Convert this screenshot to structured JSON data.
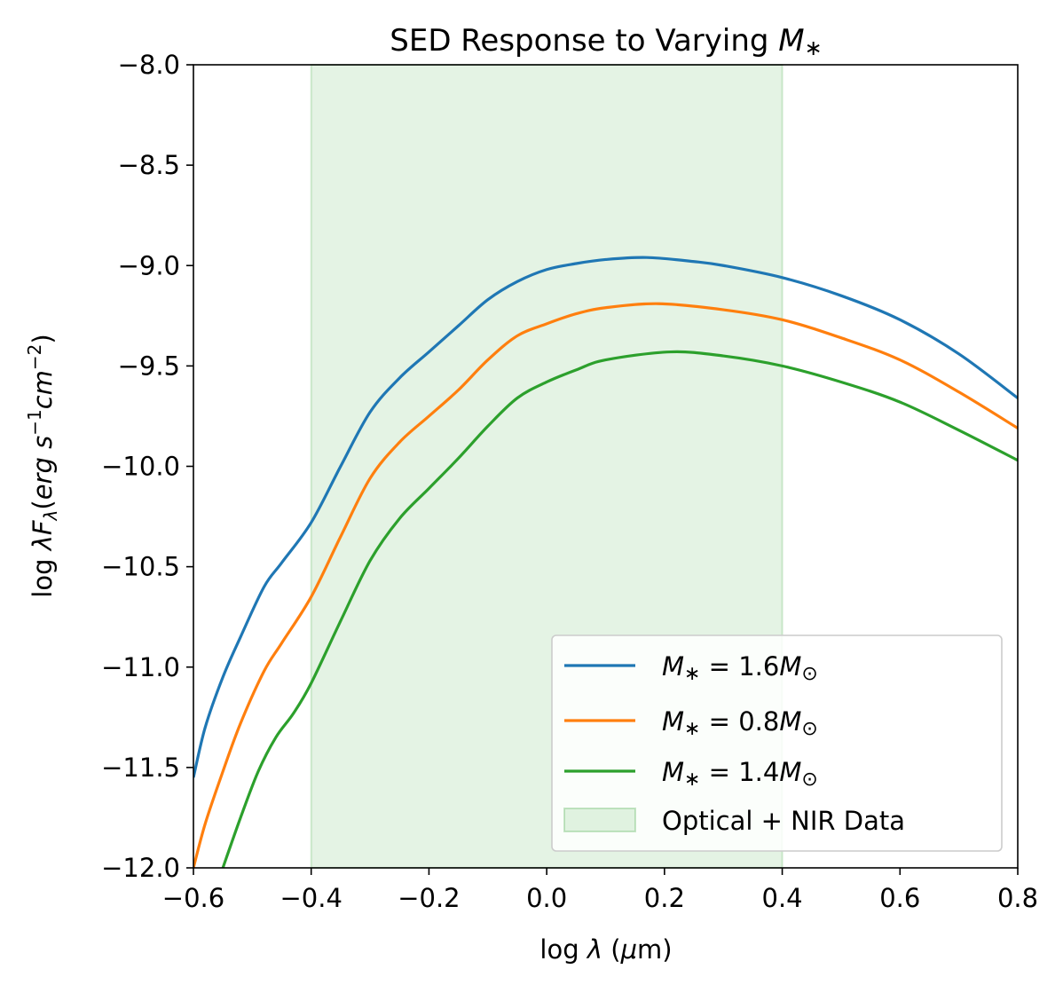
{
  "chart_data": {
    "type": "line",
    "title": "SED Response to Varying M∗",
    "xlabel": "log λ (μm)",
    "ylabel": "log λFλ(erg   s⁻¹cm⁻²)",
    "xlim": [
      -0.6,
      0.8
    ],
    "ylim": [
      -12.0,
      -8.0
    ],
    "xticks": [
      -0.6,
      -0.4,
      -0.2,
      0.0,
      0.2,
      0.4,
      0.6,
      0.8
    ],
    "xtick_labels": [
      "−0.6",
      "−0.4",
      "−0.2",
      "0.0",
      "0.2",
      "0.4",
      "0.6",
      "0.8"
    ],
    "yticks": [
      -12.0,
      -11.5,
      -11.0,
      -10.5,
      -10.0,
      -9.5,
      -9.0,
      -8.5,
      -8.0
    ],
    "ytick_labels": [
      "−12.0",
      "−11.5",
      "−11.0",
      "−10.5",
      "−10.0",
      "−9.5",
      "−9.0",
      "−8.5",
      "−8.0"
    ],
    "grid": false,
    "legend_position": "lower-right",
    "shaded_region": {
      "label": "Optical + NIR Data",
      "x_range": [
        -0.4,
        0.4
      ],
      "color": "#2ca02c"
    },
    "series": [
      {
        "name": "M∗ = 1.6M⊙",
        "color": "#1f77b4",
        "x": [
          -0.6,
          -0.58,
          -0.55,
          -0.52,
          -0.48,
          -0.45,
          -0.4,
          -0.35,
          -0.3,
          -0.25,
          -0.2,
          -0.15,
          -0.1,
          -0.05,
          0.0,
          0.05,
          0.1,
          0.17,
          0.25,
          0.3,
          0.4,
          0.5,
          0.6,
          0.7,
          0.8
        ],
        "y": [
          -11.55,
          -11.3,
          -11.05,
          -10.85,
          -10.6,
          -10.48,
          -10.28,
          -10.0,
          -9.73,
          -9.56,
          -9.43,
          -9.3,
          -9.17,
          -9.08,
          -9.02,
          -8.99,
          -8.97,
          -8.96,
          -8.98,
          -9.0,
          -9.06,
          -9.15,
          -9.27,
          -9.44,
          -9.66
        ]
      },
      {
        "name": "M∗ = 0.8M⊙",
        "color": "#ff7f0e",
        "x": [
          -0.6,
          -0.58,
          -0.55,
          -0.52,
          -0.48,
          -0.45,
          -0.4,
          -0.35,
          -0.3,
          -0.25,
          -0.2,
          -0.15,
          -0.1,
          -0.05,
          0.0,
          0.05,
          0.1,
          0.19,
          0.3,
          0.4,
          0.5,
          0.6,
          0.7,
          0.8
        ],
        "y": [
          -12.0,
          -11.78,
          -11.52,
          -11.28,
          -11.02,
          -10.88,
          -10.65,
          -10.35,
          -10.06,
          -9.88,
          -9.75,
          -9.62,
          -9.47,
          -9.35,
          -9.29,
          -9.24,
          -9.21,
          -9.19,
          -9.22,
          -9.27,
          -9.36,
          -9.47,
          -9.63,
          -9.81
        ]
      },
      {
        "name": "M∗ = 1.4M⊙",
        "color": "#2ca02c",
        "x": [
          -0.55,
          -0.52,
          -0.49,
          -0.46,
          -0.43,
          -0.4,
          -0.35,
          -0.3,
          -0.25,
          -0.2,
          -0.15,
          -0.1,
          -0.05,
          0.0,
          0.05,
          0.1,
          0.21,
          0.3,
          0.4,
          0.5,
          0.6,
          0.7,
          0.8
        ],
        "y": [
          -12.0,
          -11.75,
          -11.52,
          -11.35,
          -11.23,
          -11.08,
          -10.77,
          -10.47,
          -10.26,
          -10.11,
          -9.96,
          -9.8,
          -9.66,
          -9.58,
          -9.52,
          -9.47,
          -9.43,
          -9.45,
          -9.5,
          -9.58,
          -9.68,
          -9.82,
          -9.97
        ]
      }
    ]
  }
}
